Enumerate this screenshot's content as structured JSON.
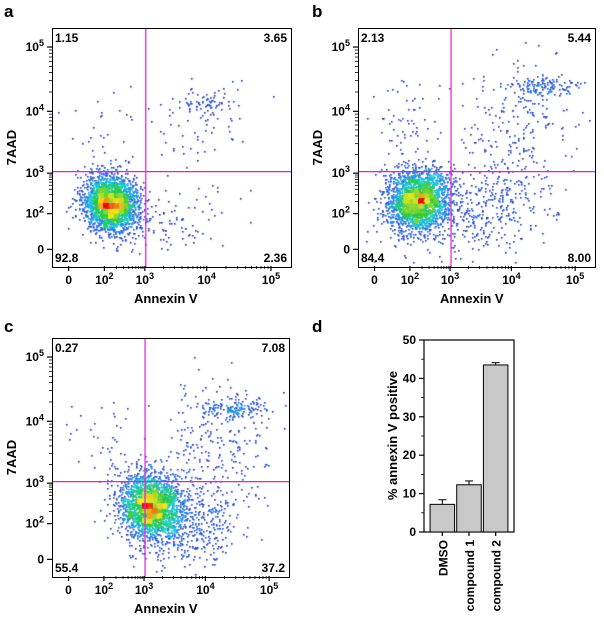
{
  "chart_data": [
    {
      "type": "scatter",
      "panel": "a",
      "xlabel": "Annexin V",
      "ylabel": "7AAD",
      "x_tick_labels": [
        "0",
        "10^2",
        "10^3",
        "10^4",
        "10^5"
      ],
      "y_tick_labels": [
        "0",
        "10^2",
        "10^3",
        "10^4",
        "10^5"
      ],
      "gate": {
        "x": 1000,
        "y": 1100
      },
      "quadrants": {
        "top_left": "1.15",
        "top_right": "3.65",
        "bottom_left": "92.8",
        "bottom_right": "2.36"
      }
    },
    {
      "type": "scatter",
      "panel": "b",
      "xlabel": "Annexin V",
      "ylabel": "7AAD",
      "x_tick_labels": [
        "0",
        "10^2",
        "10^3",
        "10^4",
        "10^5"
      ],
      "y_tick_labels": [
        "0",
        "10^2",
        "10^3",
        "10^4",
        "10^5"
      ],
      "gate": {
        "x": 1000,
        "y": 1100
      },
      "quadrants": {
        "top_left": "2.13",
        "top_right": "5.44",
        "bottom_left": "84.4",
        "bottom_right": "8.00"
      }
    },
    {
      "type": "scatter",
      "panel": "c",
      "xlabel": "Annexin V",
      "ylabel": "7AAD",
      "x_tick_labels": [
        "0",
        "10^2",
        "10^3",
        "10^4",
        "10^5"
      ],
      "y_tick_labels": [
        "0",
        "10^2",
        "10^3",
        "10^4",
        "10^5"
      ],
      "gate": {
        "x": 1000,
        "y": 1100
      },
      "quadrants": {
        "top_left": "0.27",
        "top_right": "7.08",
        "bottom_left": "55.4",
        "bottom_right": "37.2"
      }
    },
    {
      "type": "bar",
      "panel": "d",
      "title": "",
      "xlabel": "",
      "ylabel": "% annexin V positive",
      "categories": [
        "DMSO",
        "compound 1",
        "compound 2"
      ],
      "values": [
        7.2,
        12.3,
        43.5
      ],
      "errors": [
        1.2,
        1.0,
        0.6
      ],
      "ylim": [
        0,
        50
      ],
      "yticks": [
        0,
        10,
        20,
        30,
        40,
        50
      ]
    }
  ],
  "colors": {
    "gate_line": "#e020d8",
    "bar_fill": "#c8c8c8",
    "density_low": "#1a1a8c",
    "density_high": "#e81010"
  }
}
